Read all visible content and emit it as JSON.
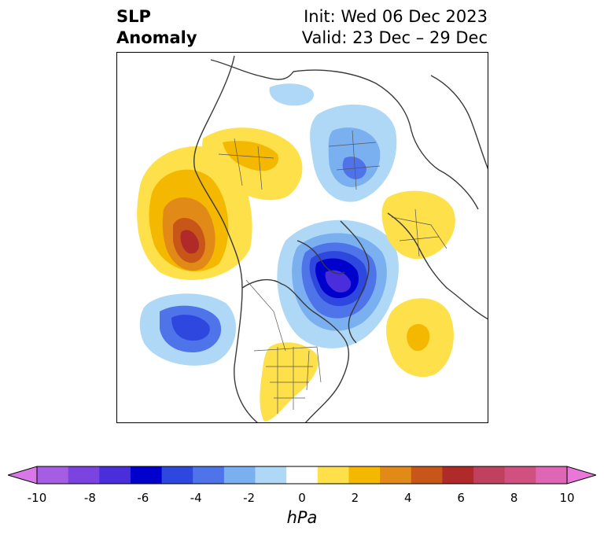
{
  "title": {
    "left_line1": "SLP",
    "left_line2": "Anomaly",
    "right_line1": "Init: Wed 06 Dec 2023",
    "right_line2": "Valid: 23 Dec – 29 Dec"
  },
  "colorbar": {
    "unit": "hPa",
    "ticks": [
      "-10",
      "-8",
      "-6",
      "-4",
      "-2",
      "0",
      "2",
      "4",
      "6",
      "8",
      "10"
    ],
    "levels": [
      -10,
      -9,
      -8,
      -7,
      -6,
      -5,
      -4,
      -3,
      -2,
      -1,
      1,
      2,
      3,
      4,
      5,
      6,
      7,
      8,
      9,
      10
    ],
    "colors": [
      "#d877e6",
      "#a55ee3",
      "#7b43df",
      "#4a2edb",
      "#0000cc",
      "#2e47de",
      "#4f73e8",
      "#7ab0f0",
      "#afd8f6",
      "#ffffff",
      "#fde04a",
      "#f4b800",
      "#e28a17",
      "#c85618",
      "#b02a2a",
      "#c04060",
      "#d05080",
      "#df66b5",
      "#e877d8"
    ],
    "extend": "both"
  },
  "map": {
    "projection": "north polar stereographic",
    "anomalies": [
      {
        "name": "alaska-north-pacific-high",
        "sign": "positive",
        "peak_hpa": 6
      },
      {
        "name": "north-pacific-low",
        "sign": "negative",
        "peak_hpa": -5
      },
      {
        "name": "hudson-bay-greenland-low",
        "sign": "negative",
        "peak_hpa": -7
      },
      {
        "name": "siberia-low",
        "sign": "negative",
        "peak_hpa": -3
      },
      {
        "name": "central-asia-high",
        "sign": "positive",
        "peak_hpa": 2
      },
      {
        "name": "europe-high",
        "sign": "positive",
        "peak_hpa": 2
      },
      {
        "name": "north-atlantic-high",
        "sign": "positive",
        "peak_hpa": 3
      },
      {
        "name": "southern-us-high",
        "sign": "positive",
        "peak_hpa": 1
      }
    ]
  }
}
